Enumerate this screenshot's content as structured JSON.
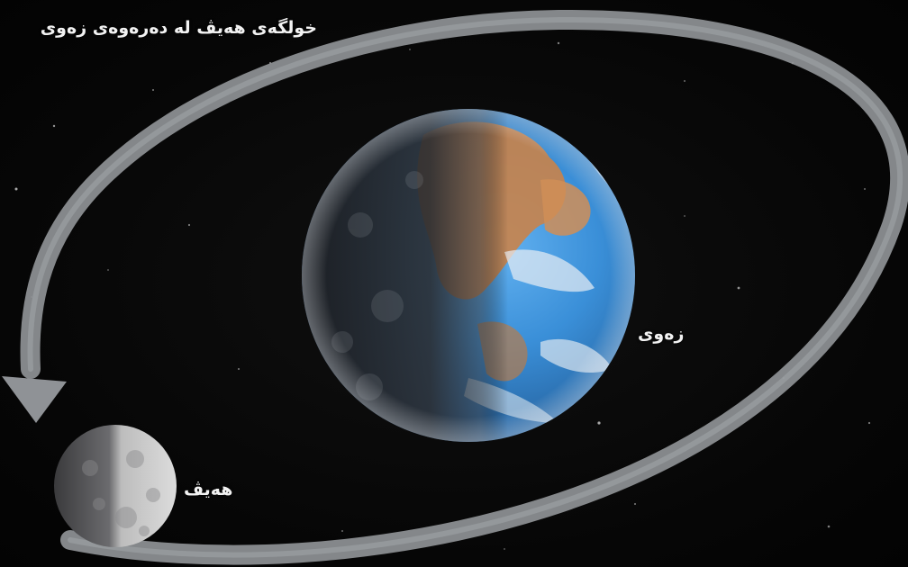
{
  "title": "خولگەی هەیڤ لە دەرەوەی زەوی",
  "labels": {
    "earth": "زەوی",
    "moon": "هەیڤ"
  },
  "colors": {
    "background": "#070707",
    "orbit_arrow": "#8f9296",
    "ocean": "#3a8fd8",
    "land": "#c9834a",
    "moon": "#c9c9c9",
    "text": "#f2f2f2"
  }
}
